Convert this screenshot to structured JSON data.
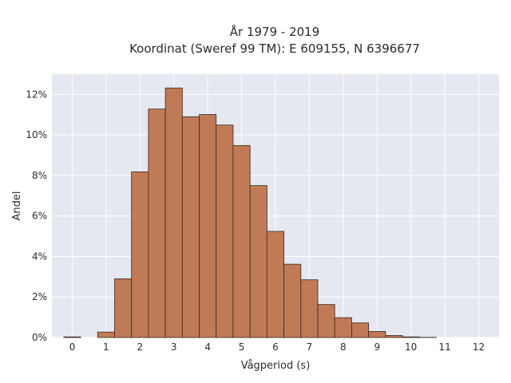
{
  "chart_data": {
    "type": "bar",
    "title_lines": [
      "År 1979 - 2019",
      "Koordinat (Sweref 99 TM): E 609155, N 6396677"
    ],
    "xlabel": "Vågperiod (s)",
    "ylabel": "Andel",
    "xlim": [
      -0.6,
      12.6
    ],
    "ylim": [
      0,
      0.13
    ],
    "x_ticks": [
      0,
      1,
      2,
      3,
      4,
      5,
      6,
      7,
      8,
      9,
      10,
      11,
      12
    ],
    "x_tick_labels": [
      "0",
      "1",
      "2",
      "3",
      "4",
      "5",
      "6",
      "7",
      "8",
      "9",
      "10",
      "11",
      "12"
    ],
    "y_ticks": [
      0,
      0.02,
      0.04,
      0.06,
      0.08,
      0.1,
      0.12
    ],
    "y_tick_labels": [
      "0%",
      "2%",
      "4%",
      "6%",
      "8%",
      "10%",
      "12%"
    ],
    "grid": true,
    "bar_color": "#c07a55",
    "edge_color": "#3a2a20",
    "plot_background": "#e5e8f0",
    "bin_width": 0.5,
    "bin_starts": [
      -0.25,
      0.25,
      0.75,
      1.25,
      1.75,
      2.25,
      2.75,
      3.25,
      3.75,
      4.25,
      4.75,
      5.25,
      5.75,
      6.25,
      6.75,
      7.25,
      7.75,
      8.25,
      8.75,
      9.25,
      9.75,
      10.25,
      10.75,
      11.25,
      11.75
    ],
    "values": [
      0.0003,
      0.0,
      0.0027,
      0.029,
      0.0818,
      0.1128,
      0.1232,
      0.109,
      0.1101,
      0.1049,
      0.0948,
      0.075,
      0.0524,
      0.0362,
      0.0285,
      0.0163,
      0.0098,
      0.0072,
      0.003,
      0.001,
      0.0003,
      0.0001,
      0.0,
      0.0,
      0.0
    ]
  }
}
